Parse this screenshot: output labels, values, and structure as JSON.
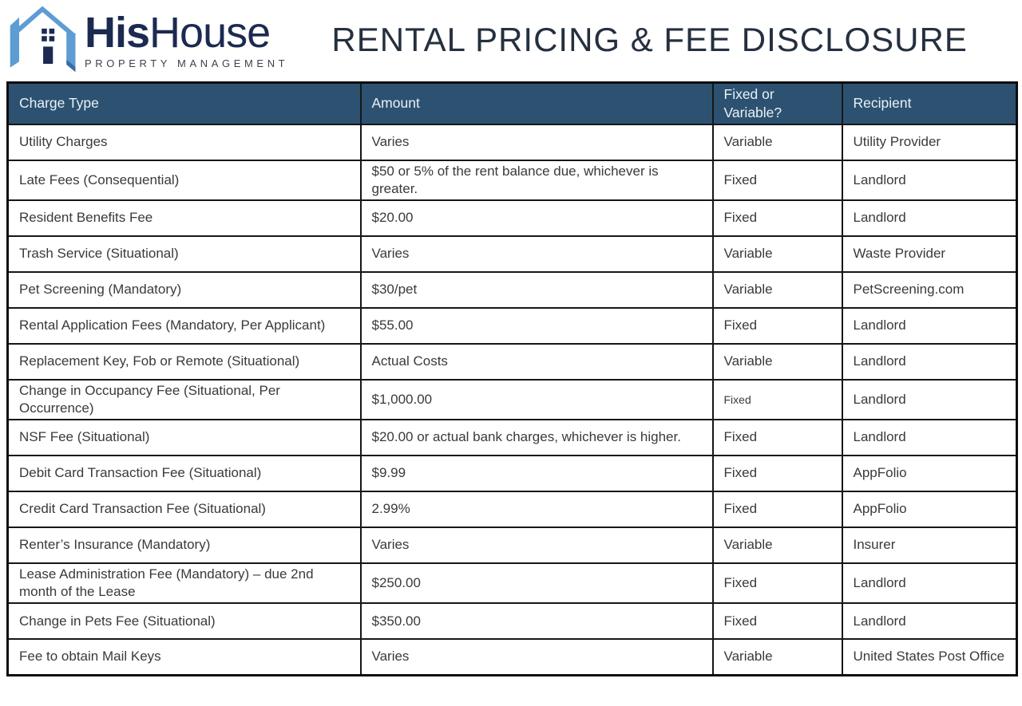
{
  "logo": {
    "icon": "house-h-monogram-icon",
    "brand_bold": "His",
    "brand_light": "House",
    "tagline": "PROPERTY MANAGEMENT"
  },
  "title": "RENTAL PRICING & FEE DISCLOSURE",
  "colors": {
    "header_row_bg": "#2D5271",
    "header_row_text": "#E9F1F8",
    "table_border": "#161616",
    "body_text": "#3A3A3A",
    "brand_navy": "#1C2A52",
    "brand_light_blue": "#5E9CD4",
    "brand_accent_blue": "#3A6CA6",
    "title_color": "#25303F"
  },
  "table": {
    "headers": [
      "Charge Type",
      "Amount",
      "Fixed or Variable?",
      "Recipient"
    ],
    "rows": [
      {
        "charge_type": "Utility Charges",
        "amount": "Varies",
        "fixed_or_variable": "Variable",
        "recipient": "Utility Provider"
      },
      {
        "charge_type": "Late Fees (Consequential)",
        "amount": "$50 or 5% of the rent balance due, whichever is greater.",
        "fixed_or_variable": "Fixed",
        "recipient": "Landlord"
      },
      {
        "charge_type": "Resident Benefits Fee",
        "amount": "$20.00",
        "fixed_or_variable": "Fixed",
        "recipient": "Landlord"
      },
      {
        "charge_type": "Trash Service (Situational)",
        "amount": "Varies",
        "fixed_or_variable": "Variable",
        "recipient": "Waste Provider"
      },
      {
        "charge_type": "Pet Screening (Mandatory)",
        "amount": "$30/pet",
        "fixed_or_variable": "Variable",
        "recipient": "PetScreening.com"
      },
      {
        "charge_type": "Rental Application Fees (Mandatory, Per Applicant)",
        "amount": "$55.00",
        "fixed_or_variable": "Fixed",
        "recipient": "Landlord"
      },
      {
        "charge_type": "Replacement Key, Fob or Remote (Situational)",
        "amount": "Actual Costs",
        "fixed_or_variable": "Variable",
        "recipient": "Landlord"
      },
      {
        "charge_type": "Change in Occupancy Fee (Situational, Per Occurrence)",
        "amount": "$1,000.00",
        "fixed_or_variable": "Fixed",
        "recipient": "Landlord",
        "fixed_small": true
      },
      {
        "charge_type": "NSF Fee (Situational)",
        "amount": "$20.00 or actual bank charges, whichever is higher.",
        "fixed_or_variable": "Fixed",
        "recipient": "Landlord"
      },
      {
        "charge_type": "Debit Card Transaction Fee (Situational)",
        "amount": "$9.99",
        "fixed_or_variable": "Fixed",
        "recipient": "AppFolio"
      },
      {
        "charge_type": "Credit Card Transaction Fee (Situational)",
        "amount": "2.99%",
        "fixed_or_variable": "Fixed",
        "recipient": "AppFolio"
      },
      {
        "charge_type": "Renter’s Insurance (Mandatory)",
        "amount": "Varies",
        "fixed_or_variable": "Variable",
        "recipient": "Insurer"
      },
      {
        "charge_type": "Lease Administration Fee (Mandatory) – due 2nd month of the Lease",
        "amount": "$250.00",
        "fixed_or_variable": "Fixed",
        "recipient": "Landlord"
      },
      {
        "charge_type": "Change in Pets Fee (Situational)",
        "amount": "$350.00",
        "fixed_or_variable": "Fixed",
        "recipient": "Landlord"
      },
      {
        "charge_type": "Fee to obtain Mail Keys",
        "amount": "Varies",
        "fixed_or_variable": "Variable",
        "recipient": "United States Post Office"
      }
    ]
  }
}
